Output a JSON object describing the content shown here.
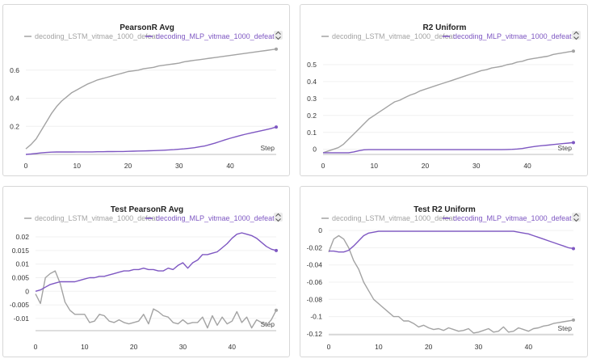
{
  "colors": {
    "lstm": "#a3a3a3",
    "mlp": "#7e57c2",
    "text": "#333333"
  },
  "icons": {
    "legend_toggle": "chevron-up-down-icon"
  },
  "chart_data": [
    {
      "type": "line",
      "title": "PearsonR Avg",
      "xlabel": "Step",
      "xlim": [
        0,
        49
      ],
      "ylim": [
        0,
        0.76
      ],
      "xticks": [
        0,
        10,
        20,
        30,
        40
      ],
      "yticks": [
        0.2,
        0.4,
        0.6
      ],
      "ytick_labels": [
        "0.2",
        "0.4",
        "0.6"
      ],
      "legend": "top",
      "series": [
        {
          "name": "decoding_LSTM_vitmae_1000_defeat",
          "color": "#a3a3a3",
          "x": [
            0,
            1,
            2,
            3,
            4,
            5,
            6,
            7,
            8,
            9,
            10,
            11,
            12,
            13,
            14,
            15,
            16,
            17,
            18,
            19,
            20,
            21,
            22,
            23,
            24,
            25,
            26,
            27,
            28,
            29,
            30,
            31,
            32,
            33,
            34,
            35,
            36,
            37,
            38,
            39,
            40,
            41,
            42,
            43,
            44,
            45,
            46,
            47,
            48,
            49
          ],
          "values": [
            0.04,
            0.07,
            0.11,
            0.17,
            0.23,
            0.29,
            0.34,
            0.38,
            0.41,
            0.44,
            0.46,
            0.48,
            0.5,
            0.515,
            0.53,
            0.54,
            0.55,
            0.56,
            0.57,
            0.58,
            0.59,
            0.595,
            0.6,
            0.61,
            0.615,
            0.62,
            0.63,
            0.635,
            0.64,
            0.645,
            0.65,
            0.66,
            0.665,
            0.67,
            0.675,
            0.68,
            0.685,
            0.69,
            0.695,
            0.7,
            0.705,
            0.71,
            0.715,
            0.72,
            0.725,
            0.73,
            0.735,
            0.74,
            0.745,
            0.75
          ]
        },
        {
          "name": "decoding_MLP_vitmae_1000_defeat",
          "color": "#7e57c2",
          "x": [
            0,
            1,
            2,
            3,
            4,
            5,
            6,
            7,
            8,
            9,
            10,
            11,
            12,
            13,
            14,
            15,
            16,
            17,
            18,
            19,
            20,
            21,
            22,
            23,
            24,
            25,
            26,
            27,
            28,
            29,
            30,
            31,
            32,
            33,
            34,
            35,
            36,
            37,
            38,
            39,
            40,
            41,
            42,
            43,
            44,
            45,
            46,
            47,
            48,
            49
          ],
          "values": [
            0.0,
            0.003,
            0.007,
            0.011,
            0.014,
            0.016,
            0.017,
            0.017,
            0.017,
            0.017,
            0.018,
            0.018,
            0.018,
            0.018,
            0.019,
            0.019,
            0.02,
            0.02,
            0.021,
            0.021,
            0.022,
            0.023,
            0.024,
            0.025,
            0.026,
            0.027,
            0.028,
            0.03,
            0.032,
            0.034,
            0.037,
            0.04,
            0.044,
            0.048,
            0.054,
            0.06,
            0.07,
            0.08,
            0.092,
            0.104,
            0.115,
            0.125,
            0.135,
            0.144,
            0.152,
            0.16,
            0.168,
            0.176,
            0.185,
            0.195
          ]
        }
      ]
    },
    {
      "type": "line",
      "title": "R2 Uniform",
      "xlabel": "Step",
      "xlim": [
        0,
        49
      ],
      "ylim": [
        -0.03,
        0.6
      ],
      "xticks": [
        0,
        10,
        20,
        30,
        40
      ],
      "yticks": [
        0,
        0.1,
        0.2,
        0.3,
        0.4,
        0.5
      ],
      "ytick_labels": [
        "0",
        "0.1",
        "0.2",
        "0.3",
        "0.4",
        "0.5"
      ],
      "legend": "top",
      "series": [
        {
          "name": "decoding_LSTM_vitmae_1000_defeat",
          "color": "#a3a3a3",
          "x": [
            0,
            1,
            2,
            3,
            4,
            5,
            6,
            7,
            8,
            9,
            10,
            11,
            12,
            13,
            14,
            15,
            16,
            17,
            18,
            19,
            20,
            21,
            22,
            23,
            24,
            25,
            26,
            27,
            28,
            29,
            30,
            31,
            32,
            33,
            34,
            35,
            36,
            37,
            38,
            39,
            40,
            41,
            42,
            43,
            44,
            45,
            46,
            47,
            48,
            49
          ],
          "values": [
            -0.02,
            -0.01,
            0.0,
            0.01,
            0.03,
            0.06,
            0.09,
            0.12,
            0.15,
            0.18,
            0.2,
            0.22,
            0.24,
            0.26,
            0.28,
            0.29,
            0.305,
            0.32,
            0.33,
            0.345,
            0.355,
            0.365,
            0.375,
            0.385,
            0.395,
            0.405,
            0.415,
            0.425,
            0.435,
            0.445,
            0.455,
            0.465,
            0.47,
            0.48,
            0.485,
            0.49,
            0.5,
            0.505,
            0.515,
            0.52,
            0.53,
            0.535,
            0.54,
            0.545,
            0.55,
            0.56,
            0.565,
            0.57,
            0.575,
            0.58
          ]
        },
        {
          "name": "decoding_MLP_vitmae_1000_defeat",
          "color": "#7e57c2",
          "x": [
            0,
            1,
            2,
            3,
            4,
            5,
            6,
            7,
            8,
            9,
            10,
            11,
            12,
            13,
            14,
            15,
            16,
            17,
            18,
            19,
            20,
            21,
            22,
            23,
            24,
            25,
            26,
            27,
            28,
            29,
            30,
            31,
            32,
            33,
            34,
            35,
            36,
            37,
            38,
            39,
            40,
            41,
            42,
            43,
            44,
            45,
            46,
            47,
            48,
            49
          ],
          "values": [
            -0.02,
            -0.02,
            -0.02,
            -0.02,
            -0.02,
            -0.02,
            -0.015,
            -0.008,
            -0.003,
            -0.002,
            -0.002,
            -0.002,
            -0.002,
            -0.002,
            -0.002,
            -0.002,
            -0.002,
            -0.002,
            -0.002,
            -0.002,
            -0.002,
            -0.002,
            -0.002,
            -0.002,
            -0.002,
            -0.002,
            -0.002,
            -0.002,
            -0.002,
            -0.002,
            -0.002,
            -0.002,
            -0.002,
            -0.002,
            -0.002,
            -0.002,
            -0.001,
            0.0,
            0.002,
            0.005,
            0.01,
            0.015,
            0.019,
            0.022,
            0.025,
            0.028,
            0.031,
            0.034,
            0.037,
            0.04
          ]
        }
      ]
    },
    {
      "type": "line",
      "title": "Test PearsonR Avg",
      "xlabel": "Step",
      "xlim": [
        0,
        49
      ],
      "ylim": [
        -0.0145,
        0.0215
      ],
      "xticks": [
        0,
        10,
        20,
        30,
        40
      ],
      "yticks": [
        -0.01,
        -0.005,
        0,
        0.005,
        0.01,
        0.015,
        0.02
      ],
      "ytick_labels": [
        "-0.01",
        "-0.005",
        "0",
        "0.005",
        "0.01",
        "0.015",
        "0.02"
      ],
      "legend": "top",
      "series": [
        {
          "name": "decoding_LSTM_vitmae_1000_defeat",
          "color": "#a3a3a3",
          "x": [
            0,
            1,
            2,
            3,
            4,
            5,
            6,
            7,
            8,
            9,
            10,
            11,
            12,
            13,
            14,
            15,
            16,
            17,
            18,
            19,
            20,
            21,
            22,
            23,
            24,
            25,
            26,
            27,
            28,
            29,
            30,
            31,
            32,
            33,
            34,
            35,
            36,
            37,
            38,
            39,
            40,
            41,
            42,
            43,
            44,
            45,
            46,
            47,
            48,
            49
          ],
          "values": [
            -0.001,
            -0.0045,
            0.005,
            0.0065,
            0.0075,
            0.003,
            -0.004,
            -0.007,
            -0.0085,
            -0.0085,
            -0.0085,
            -0.0115,
            -0.011,
            -0.0085,
            -0.009,
            -0.011,
            -0.0115,
            -0.0105,
            -0.0115,
            -0.012,
            -0.0115,
            -0.011,
            -0.0085,
            -0.012,
            -0.0065,
            -0.0075,
            -0.009,
            -0.0095,
            -0.0115,
            -0.012,
            -0.0105,
            -0.012,
            -0.0115,
            -0.0115,
            -0.0095,
            -0.0135,
            -0.009,
            -0.0125,
            -0.0095,
            -0.012,
            -0.011,
            -0.0075,
            -0.0115,
            -0.0095,
            -0.0135,
            -0.0105,
            -0.0115,
            -0.0125,
            -0.0105,
            -0.007
          ]
        },
        {
          "name": "decoding_MLP_vitmae_1000_defeat",
          "color": "#7e57c2",
          "x": [
            0,
            1,
            2,
            3,
            4,
            5,
            6,
            7,
            8,
            9,
            10,
            11,
            12,
            13,
            14,
            15,
            16,
            17,
            18,
            19,
            20,
            21,
            22,
            23,
            24,
            25,
            26,
            27,
            28,
            29,
            30,
            31,
            32,
            33,
            34,
            35,
            36,
            37,
            38,
            39,
            40,
            41,
            42,
            43,
            44,
            45,
            46,
            47,
            48,
            49
          ],
          "values": [
            0.0,
            0.0005,
            0.0015,
            0.0025,
            0.003,
            0.0035,
            0.0035,
            0.0035,
            0.0035,
            0.004,
            0.0045,
            0.005,
            0.005,
            0.0055,
            0.0055,
            0.006,
            0.0065,
            0.007,
            0.0075,
            0.0075,
            0.008,
            0.008,
            0.0085,
            0.008,
            0.008,
            0.0075,
            0.0075,
            0.0085,
            0.008,
            0.0095,
            0.0105,
            0.0085,
            0.0105,
            0.0115,
            0.0135,
            0.0135,
            0.014,
            0.0145,
            0.016,
            0.0175,
            0.0195,
            0.021,
            0.0215,
            0.021,
            0.0205,
            0.0195,
            0.018,
            0.0165,
            0.0155,
            0.015
          ]
        }
      ]
    },
    {
      "type": "line",
      "title": "Test R2 Uniform",
      "xlabel": "Step",
      "xlim": [
        0,
        49
      ],
      "ylim": [
        -0.121,
        0.001
      ],
      "xticks": [
        0,
        10,
        20,
        30,
        40
      ],
      "yticks": [
        0,
        -0.02,
        -0.04,
        -0.06,
        -0.08,
        -0.1,
        -0.12
      ],
      "ytick_labels": [
        "0",
        "-0.02",
        "-0.04",
        "-0.06",
        "-0.08",
        "-0.1",
        "-0.12"
      ],
      "legend": "top",
      "series": [
        {
          "name": "decoding_LSTM_vitmae_1000_defeat",
          "color": "#a3a3a3",
          "x": [
            0,
            1,
            2,
            3,
            4,
            5,
            6,
            7,
            8,
            9,
            10,
            11,
            12,
            13,
            14,
            15,
            16,
            17,
            18,
            19,
            20,
            21,
            22,
            23,
            24,
            25,
            26,
            27,
            28,
            29,
            30,
            31,
            32,
            33,
            34,
            35,
            36,
            37,
            38,
            39,
            40,
            41,
            42,
            43,
            44,
            45,
            46,
            47,
            48,
            49
          ],
          "values": [
            -0.025,
            -0.01,
            -0.006,
            -0.01,
            -0.02,
            -0.035,
            -0.045,
            -0.06,
            -0.07,
            -0.08,
            -0.085,
            -0.09,
            -0.095,
            -0.1,
            -0.1,
            -0.105,
            -0.105,
            -0.108,
            -0.112,
            -0.11,
            -0.113,
            -0.115,
            -0.114,
            -0.116,
            -0.113,
            -0.115,
            -0.117,
            -0.116,
            -0.114,
            -0.119,
            -0.118,
            -0.116,
            -0.114,
            -0.118,
            -0.117,
            -0.112,
            -0.118,
            -0.117,
            -0.113,
            -0.115,
            -0.117,
            -0.114,
            -0.113,
            -0.111,
            -0.11,
            -0.108,
            -0.107,
            -0.106,
            -0.105,
            -0.104
          ]
        },
        {
          "name": "decoding_MLP_vitmae_1000_defeat",
          "color": "#7e57c2",
          "x": [
            0,
            1,
            2,
            3,
            4,
            5,
            6,
            7,
            8,
            9,
            10,
            11,
            12,
            13,
            14,
            15,
            16,
            17,
            18,
            19,
            20,
            21,
            22,
            23,
            24,
            25,
            26,
            27,
            28,
            29,
            30,
            31,
            32,
            33,
            34,
            35,
            36,
            37,
            38,
            39,
            40,
            41,
            42,
            43,
            44,
            45,
            46,
            47,
            48,
            49
          ],
          "values": [
            -0.024,
            -0.024,
            -0.025,
            -0.025,
            -0.023,
            -0.018,
            -0.012,
            -0.006,
            -0.003,
            -0.002,
            -0.001,
            -0.001,
            -0.001,
            -0.001,
            -0.001,
            -0.001,
            -0.001,
            -0.001,
            -0.001,
            -0.001,
            -0.001,
            -0.001,
            -0.001,
            -0.001,
            -0.001,
            -0.001,
            -0.001,
            -0.001,
            -0.001,
            -0.001,
            -0.001,
            -0.001,
            -0.001,
            -0.001,
            -0.001,
            -0.001,
            -0.001,
            -0.001,
            -0.002,
            -0.003,
            -0.004,
            -0.006,
            -0.008,
            -0.01,
            -0.012,
            -0.014,
            -0.016,
            -0.018,
            -0.02,
            -0.021
          ]
        }
      ]
    }
  ]
}
